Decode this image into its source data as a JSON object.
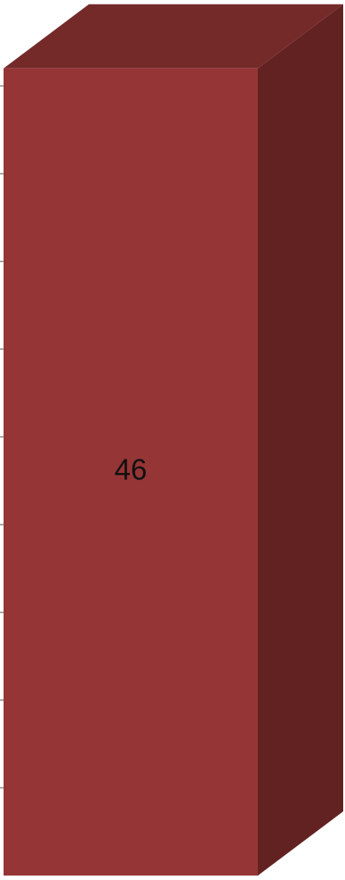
{
  "chart_data": {
    "type": "bar",
    "style": "3d-column",
    "values": [
      46
    ],
    "data_labels": [
      "46"
    ],
    "ylim": [
      0,
      50
    ],
    "grid": true,
    "legend": "none",
    "colors": {
      "front": "#963535",
      "side": "#632222",
      "top": "#752a2a",
      "gridline": "#8c8c8c"
    }
  }
}
